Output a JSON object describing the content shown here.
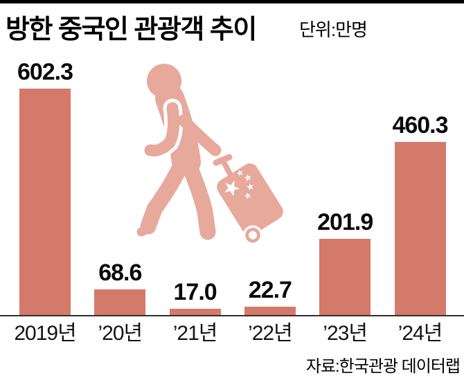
{
  "header": {
    "title": "방한 중국인 관광객 추이",
    "unit": "단위:만명"
  },
  "source": "자료:한국관광 데이터랩",
  "colors": {
    "bar": "#d5796a",
    "icon": "#e7a99b",
    "axis": "#2e2e2e",
    "top_rule": "#000000",
    "text": "#000000",
    "background": "#ffffff"
  },
  "icon": {
    "name": "tourist-with-suitcase-icon",
    "description": "pink pictogram of a walking person pulling a tilted rolling suitcase decorated with the five stars of the Chinese flag"
  },
  "chart_data": {
    "type": "bar",
    "title": "방한 중국인 관광객 추이",
    "unit_label": "단위:만명",
    "source": "자료:한국관광 데이터랩",
    "categories": [
      "2019년",
      "’20년",
      "’21년",
      "’22년",
      "’23년",
      "’24년"
    ],
    "values": [
      602.3,
      68.6,
      17.0,
      22.7,
      201.9,
      460.3
    ],
    "value_labels": [
      "602.3",
      "68.6",
      "17.0",
      "22.7",
      "201.9",
      "460.3"
    ],
    "xlabel": "",
    "ylabel": "만명",
    "ylim": [
      0,
      640
    ],
    "grid": false,
    "legend": "none",
    "bar_color": "#d5796a",
    "value_labels_position": "above bars",
    "axis_line": "x-axis only"
  }
}
